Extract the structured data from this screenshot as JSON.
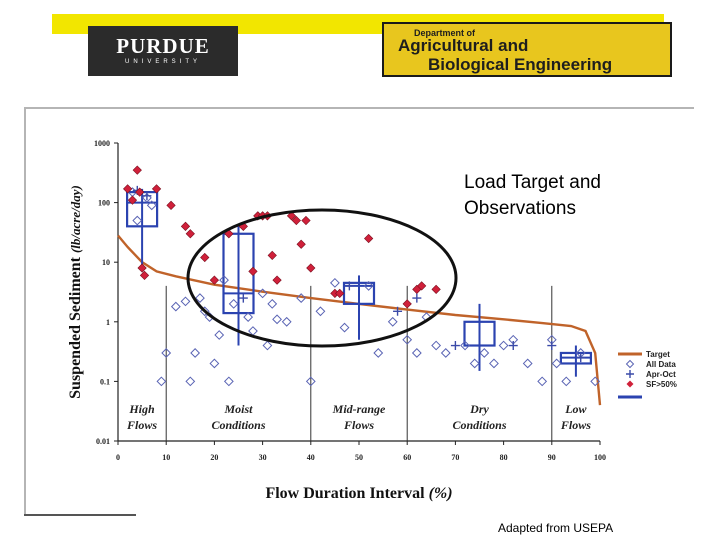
{
  "header": {
    "purdue_logo": "PURDUE",
    "purdue_sub": "UNIVERSITY",
    "dept_line1": "Department of",
    "dept_line2": "Agricultural and",
    "dept_line3": "Biological Engineering",
    "bar_color": "#f2e600"
  },
  "slide": {
    "title": "Load Target and\nObservations",
    "source": "Adapted from USEPA"
  },
  "chart_data": {
    "type": "scatter",
    "xlabel": "Flow Duration Interval (%)",
    "ylabel": "Suspended Sediment (lb/acre/day)",
    "xlim": [
      0,
      100
    ],
    "ylim": [
      0.01,
      1000
    ],
    "yscale": "log",
    "x_ticks": [
      "0",
      "10",
      "20",
      "30",
      "40",
      "50",
      "60",
      "70",
      "80",
      "90",
      "100"
    ],
    "y_ticks": [
      "0.01",
      "0.1",
      "1",
      "10",
      "100",
      "1000"
    ],
    "zones": [
      {
        "label": "High\nFlows",
        "x_start": 0,
        "x_end": 10
      },
      {
        "label": "Moist\nConditions",
        "x_start": 10,
        "x_end": 40
      },
      {
        "label": "Mid-range\nFlows",
        "x_start": 40,
        "x_end": 60
      },
      {
        "label": "Dry\nConditions",
        "x_start": 60,
        "x_end": 90
      },
      {
        "label": "Low\nFlows",
        "x_start": 90,
        "x_end": 100
      }
    ],
    "legend": {
      "position": "right",
      "items": [
        "Target",
        "All Data",
        "Apr-Oct",
        "SF>50%"
      ]
    },
    "colors": {
      "target": "#c0632a",
      "all_data": "#5a64b4",
      "apr_oct": "#3a4aa8",
      "sf": "#d0203a",
      "box": "#2b43b0"
    },
    "target_curve": [
      [
        0,
        28
      ],
      [
        2,
        18
      ],
      [
        5,
        10
      ],
      [
        8,
        7
      ],
      [
        12,
        5.8
      ],
      [
        20,
        4.2
      ],
      [
        30,
        3.2
      ],
      [
        40,
        2.5
      ],
      [
        50,
        2
      ],
      [
        60,
        1.6
      ],
      [
        70,
        1.3
      ],
      [
        80,
        1.1
      ],
      [
        88,
        0.95
      ],
      [
        94,
        0.85
      ],
      [
        97,
        0.7
      ],
      [
        99,
        0.3
      ],
      [
        100,
        0.04
      ]
    ],
    "boxes": [
      {
        "x": 5,
        "min": 7,
        "q1": 40,
        "median": 100,
        "q3": 150,
        "max": 170
      },
      {
        "x": 25,
        "min": 0.4,
        "q1": 1.4,
        "median": 3,
        "q3": 30,
        "max": 40
      },
      {
        "x": 50,
        "min": 0.5,
        "q1": 2,
        "median": 4,
        "q3": 4.5,
        "max": 6
      },
      {
        "x": 75,
        "min": 0.15,
        "q1": 0.4,
        "median": 0.4,
        "q3": 1,
        "max": 2
      },
      {
        "x": 95,
        "min": 0.12,
        "q1": 0.2,
        "median": 0.25,
        "q3": 0.3,
        "max": 0.4
      }
    ],
    "all_data": [
      [
        3,
        150
      ],
      [
        4,
        50
      ],
      [
        6,
        120
      ],
      [
        7,
        90
      ],
      [
        9,
        0.1
      ],
      [
        10,
        0.3
      ],
      [
        12,
        1.8
      ],
      [
        14,
        2.2
      ],
      [
        15,
        0.1
      ],
      [
        16,
        0.3
      ],
      [
        17,
        2.5
      ],
      [
        18,
        1.5
      ],
      [
        19,
        1.2
      ],
      [
        20,
        0.2
      ],
      [
        21,
        0.6
      ],
      [
        22,
        5
      ],
      [
        23,
        0.1
      ],
      [
        24,
        2
      ],
      [
        27,
        1.2
      ],
      [
        28,
        0.7
      ],
      [
        30,
        3
      ],
      [
        31,
        0.4
      ],
      [
        32,
        2
      ],
      [
        33,
        1.1
      ],
      [
        35,
        1
      ],
      [
        38,
        2.5
      ],
      [
        40,
        0.1
      ],
      [
        42,
        1.5
      ],
      [
        45,
        4.5
      ],
      [
        47,
        0.8
      ],
      [
        52,
        4
      ],
      [
        54,
        0.3
      ],
      [
        57,
        1
      ],
      [
        60,
        0.5
      ],
      [
        62,
        0.3
      ],
      [
        64,
        1.2
      ],
      [
        66,
        0.4
      ],
      [
        68,
        0.3
      ],
      [
        72,
        0.4
      ],
      [
        74,
        0.2
      ],
      [
        76,
        0.3
      ],
      [
        78,
        0.2
      ],
      [
        80,
        0.4
      ],
      [
        82,
        0.5
      ],
      [
        85,
        0.2
      ],
      [
        88,
        0.1
      ],
      [
        90,
        0.5
      ],
      [
        91,
        0.2
      ],
      [
        93,
        0.1
      ],
      [
        96,
        0.3
      ],
      [
        99,
        0.1
      ]
    ],
    "apr_oct": [
      [
        4,
        160
      ],
      [
        6,
        130
      ],
      [
        26,
        2.5
      ],
      [
        48,
        4
      ],
      [
        58,
        1.5
      ],
      [
        62,
        2.5
      ],
      [
        70,
        0.4
      ],
      [
        82,
        0.4
      ],
      [
        90,
        0.4
      ],
      [
        96,
        0.25
      ]
    ],
    "sf_50": [
      [
        2,
        170
      ],
      [
        3,
        110
      ],
      [
        4,
        350
      ],
      [
        4.5,
        150
      ],
      [
        5,
        8
      ],
      [
        5.5,
        6
      ],
      [
        8,
        170
      ],
      [
        11,
        90
      ],
      [
        14,
        40
      ],
      [
        15,
        30
      ],
      [
        18,
        12
      ],
      [
        20,
        5
      ],
      [
        23,
        30
      ],
      [
        26,
        40
      ],
      [
        28,
        7
      ],
      [
        29,
        60
      ],
      [
        30,
        60
      ],
      [
        31,
        60
      ],
      [
        32,
        13
      ],
      [
        33,
        5
      ],
      [
        36,
        60
      ],
      [
        37,
        50
      ],
      [
        38,
        20
      ],
      [
        39,
        50
      ],
      [
        40,
        8
      ],
      [
        45,
        3
      ],
      [
        46,
        3
      ],
      [
        52,
        25
      ],
      [
        60,
        2
      ],
      [
        62,
        3.5
      ],
      [
        63,
        4
      ],
      [
        66,
        3.5
      ]
    ]
  }
}
